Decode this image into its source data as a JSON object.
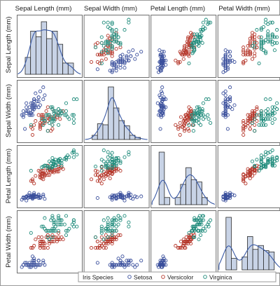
{
  "chart_data": {
    "type": "scatter",
    "variables": [
      "Sepal Length (mm)",
      "Sepal Width (mm)",
      "Petal Length (mm)",
      "Petal Width (mm)"
    ],
    "diagonal": "histogram with density curve",
    "legend": {
      "title": "Iris Species",
      "placement": "bottom",
      "entries": [
        "Setosa",
        "Versicolor",
        "Virginica"
      ]
    },
    "colors": {
      "Setosa": "#3a4f9c",
      "Versicolor": "#b5372b",
      "Virginica": "#1d8a7a"
    },
    "ranges": {
      "sl": [
        42,
        80
      ],
      "sw": [
        18,
        46
      ],
      "pl": [
        6,
        71
      ],
      "pw": [
        0,
        26
      ]
    },
    "series": [
      {
        "name": "Setosa",
        "points": [
          [
            51,
            35,
            14,
            2
          ],
          [
            49,
            30,
            14,
            2
          ],
          [
            47,
            32,
            13,
            2
          ],
          [
            46,
            31,
            15,
            2
          ],
          [
            50,
            36,
            14,
            2
          ],
          [
            54,
            39,
            17,
            4
          ],
          [
            46,
            34,
            14,
            3
          ],
          [
            50,
            34,
            15,
            2
          ],
          [
            44,
            29,
            14,
            2
          ],
          [
            49,
            31,
            15,
            1
          ],
          [
            54,
            37,
            15,
            2
          ],
          [
            48,
            34,
            16,
            2
          ],
          [
            48,
            30,
            14,
            1
          ],
          [
            43,
            30,
            11,
            1
          ],
          [
            58,
            40,
            12,
            2
          ],
          [
            57,
            44,
            15,
            4
          ],
          [
            54,
            39,
            13,
            4
          ],
          [
            51,
            35,
            14,
            3
          ],
          [
            57,
            38,
            17,
            3
          ],
          [
            51,
            38,
            15,
            3
          ],
          [
            54,
            34,
            17,
            2
          ],
          [
            51,
            37,
            15,
            4
          ],
          [
            46,
            36,
            10,
            2
          ],
          [
            51,
            33,
            17,
            5
          ],
          [
            48,
            34,
            19,
            2
          ],
          [
            50,
            30,
            16,
            2
          ],
          [
            50,
            34,
            16,
            4
          ],
          [
            52,
            35,
            15,
            2
          ],
          [
            52,
            34,
            14,
            2
          ],
          [
            47,
            32,
            16,
            2
          ],
          [
            48,
            31,
            16,
            2
          ],
          [
            54,
            34,
            15,
            4
          ],
          [
            52,
            41,
            15,
            1
          ],
          [
            55,
            42,
            14,
            2
          ],
          [
            49,
            31,
            15,
            2
          ],
          [
            50,
            32,
            12,
            2
          ],
          [
            55,
            35,
            13,
            2
          ],
          [
            49,
            36,
            14,
            1
          ],
          [
            44,
            30,
            13,
            2
          ],
          [
            51,
            34,
            15,
            2
          ],
          [
            50,
            35,
            13,
            3
          ],
          [
            45,
            23,
            13,
            3
          ],
          [
            44,
            32,
            13,
            2
          ],
          [
            50,
            35,
            16,
            6
          ],
          [
            51,
            38,
            19,
            4
          ],
          [
            48,
            30,
            14,
            3
          ],
          [
            51,
            38,
            16,
            2
          ],
          [
            46,
            32,
            14,
            2
          ],
          [
            53,
            37,
            15,
            2
          ],
          [
            50,
            33,
            14,
            2
          ]
        ]
      },
      {
        "name": "Versicolor",
        "points": [
          [
            70,
            32,
            47,
            14
          ],
          [
            64,
            32,
            45,
            15
          ],
          [
            69,
            31,
            49,
            15
          ],
          [
            55,
            23,
            40,
            13
          ],
          [
            65,
            28,
            46,
            15
          ],
          [
            57,
            28,
            45,
            13
          ],
          [
            63,
            33,
            47,
            16
          ],
          [
            49,
            24,
            33,
            10
          ],
          [
            66,
            29,
            46,
            13
          ],
          [
            52,
            27,
            39,
            14
          ],
          [
            50,
            20,
            35,
            10
          ],
          [
            59,
            30,
            42,
            15
          ],
          [
            60,
            22,
            40,
            10
          ],
          [
            61,
            29,
            47,
            14
          ],
          [
            56,
            29,
            36,
            13
          ],
          [
            67,
            31,
            44,
            14
          ],
          [
            56,
            30,
            45,
            15
          ],
          [
            58,
            27,
            41,
            10
          ],
          [
            62,
            22,
            45,
            15
          ],
          [
            56,
            25,
            39,
            11
          ],
          [
            59,
            32,
            48,
            18
          ],
          [
            61,
            28,
            40,
            13
          ],
          [
            63,
            25,
            49,
            15
          ],
          [
            61,
            28,
            47,
            12
          ],
          [
            64,
            29,
            43,
            13
          ],
          [
            66,
            30,
            44,
            14
          ],
          [
            68,
            28,
            48,
            14
          ],
          [
            67,
            30,
            50,
            17
          ],
          [
            60,
            29,
            45,
            15
          ],
          [
            57,
            26,
            35,
            10
          ],
          [
            55,
            24,
            38,
            11
          ],
          [
            55,
            24,
            37,
            10
          ],
          [
            58,
            27,
            39,
            12
          ],
          [
            60,
            27,
            51,
            16
          ],
          [
            54,
            30,
            45,
            15
          ],
          [
            60,
            34,
            45,
            16
          ],
          [
            67,
            31,
            47,
            15
          ],
          [
            63,
            23,
            44,
            13
          ],
          [
            56,
            30,
            41,
            13
          ],
          [
            55,
            25,
            40,
            13
          ],
          [
            55,
            26,
            44,
            12
          ],
          [
            61,
            30,
            46,
            14
          ],
          [
            58,
            26,
            40,
            12
          ],
          [
            50,
            23,
            33,
            10
          ],
          [
            56,
            27,
            42,
            13
          ],
          [
            57,
            30,
            42,
            12
          ],
          [
            57,
            29,
            42,
            13
          ],
          [
            62,
            29,
            43,
            13
          ],
          [
            51,
            25,
            30,
            11
          ],
          [
            57,
            28,
            41,
            13
          ]
        ]
      },
      {
        "name": "Virginica",
        "points": [
          [
            63,
            33,
            60,
            25
          ],
          [
            58,
            27,
            51,
            19
          ],
          [
            71,
            30,
            59,
            21
          ],
          [
            63,
            29,
            56,
            18
          ],
          [
            65,
            30,
            58,
            22
          ],
          [
            76,
            30,
            66,
            21
          ],
          [
            49,
            25,
            45,
            17
          ],
          [
            73,
            29,
            63,
            18
          ],
          [
            67,
            25,
            58,
            18
          ],
          [
            72,
            36,
            61,
            25
          ],
          [
            65,
            32,
            51,
            20
          ],
          [
            64,
            27,
            53,
            19
          ],
          [
            68,
            30,
            55,
            21
          ],
          [
            57,
            25,
            50,
            20
          ],
          [
            58,
            28,
            51,
            24
          ],
          [
            64,
            32,
            53,
            23
          ],
          [
            65,
            30,
            55,
            18
          ],
          [
            77,
            38,
            67,
            22
          ],
          [
            77,
            26,
            69,
            23
          ],
          [
            60,
            22,
            50,
            15
          ],
          [
            69,
            32,
            57,
            23
          ],
          [
            56,
            28,
            49,
            20
          ],
          [
            77,
            28,
            67,
            20
          ],
          [
            63,
            27,
            49,
            18
          ],
          [
            67,
            33,
            57,
            21
          ],
          [
            72,
            32,
            60,
            18
          ],
          [
            62,
            28,
            48,
            18
          ],
          [
            61,
            30,
            49,
            18
          ],
          [
            64,
            28,
            56,
            21
          ],
          [
            72,
            30,
            58,
            16
          ],
          [
            74,
            28,
            61,
            19
          ],
          [
            79,
            38,
            64,
            20
          ],
          [
            64,
            28,
            56,
            22
          ],
          [
            63,
            28,
            51,
            15
          ],
          [
            61,
            26,
            56,
            14
          ],
          [
            77,
            30,
            61,
            23
          ],
          [
            63,
            34,
            56,
            24
          ],
          [
            64,
            31,
            55,
            18
          ],
          [
            60,
            30,
            48,
            18
          ],
          [
            69,
            31,
            54,
            21
          ],
          [
            67,
            31,
            56,
            24
          ],
          [
            69,
            31,
            51,
            23
          ],
          [
            58,
            27,
            51,
            19
          ],
          [
            68,
            32,
            59,
            23
          ],
          [
            67,
            33,
            57,
            25
          ],
          [
            67,
            30,
            52,
            23
          ],
          [
            63,
            25,
            50,
            19
          ],
          [
            65,
            30,
            52,
            20
          ],
          [
            62,
            34,
            54,
            23
          ],
          [
            59,
            30,
            51,
            18
          ]
        ]
      }
    ]
  }
}
